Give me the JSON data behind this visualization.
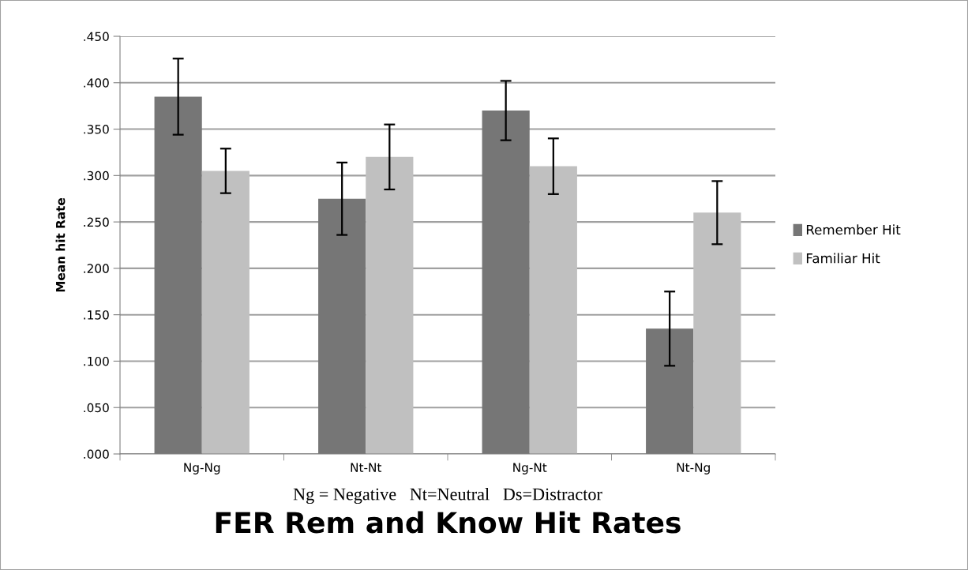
{
  "chart_data": {
    "type": "bar",
    "title": "FER Rem and Know Hit Rates",
    "ylabel": "Mean hit Rate",
    "annotations": [
      "Ng = Negative   Nt=Neutral   Ds=Distractor"
    ],
    "categories": [
      "Ng-Ng",
      "Nt-Nt",
      "Ng-Nt",
      "Nt-Ng"
    ],
    "series": [
      {
        "name": "Remember Hit",
        "color": "#767676",
        "values": [
          0.385,
          0.275,
          0.37,
          0.135
        ],
        "errors": [
          0.041,
          0.039,
          0.032,
          0.04
        ]
      },
      {
        "name": "Familiar Hit",
        "color": "#c0c0c0",
        "values": [
          0.305,
          0.32,
          0.31,
          0.26
        ],
        "errors": [
          0.024,
          0.035,
          0.03,
          0.034
        ]
      }
    ],
    "ylim": [
      0,
      0.45
    ],
    "yticks": [
      {
        "value": 0,
        "label": ".000"
      },
      {
        "value": 0.05,
        "label": ".050"
      },
      {
        "value": 0.1,
        "label": ".100"
      },
      {
        "value": 0.15,
        "label": ".150"
      },
      {
        "value": 0.2,
        "label": ".200"
      },
      {
        "value": 0.25,
        "label": ".250"
      },
      {
        "value": 0.3,
        "label": ".300"
      },
      {
        "value": 0.35,
        "label": ".350"
      },
      {
        "value": 0.4,
        "label": ".400"
      },
      {
        "value": 0.45,
        "label": ".450"
      }
    ],
    "grid": "y",
    "legend": "right"
  }
}
